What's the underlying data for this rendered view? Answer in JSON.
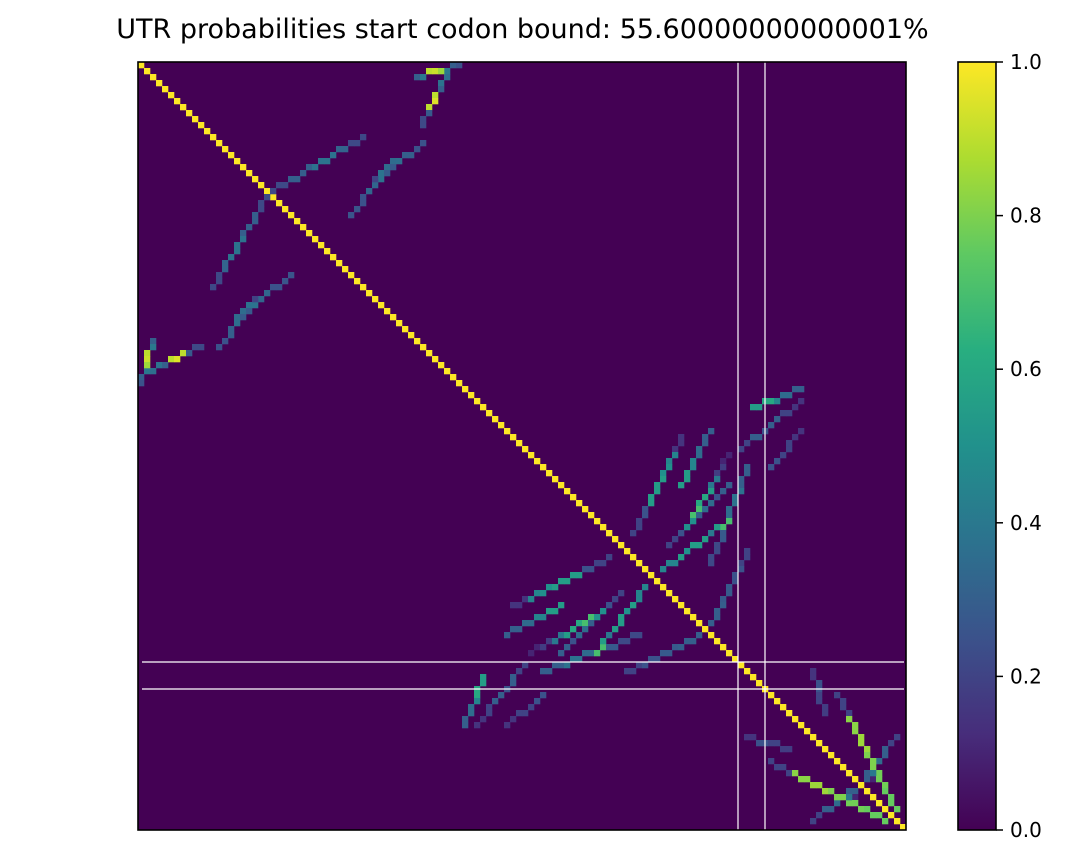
{
  "chart_data": {
    "type": "heatmap",
    "title": "UTR probabilities start codon bound: 55.60000000000001%",
    "xlabel": "",
    "ylabel": "",
    "n": 128,
    "colormap": "viridis",
    "vmin": 0.0,
    "vmax": 1.0,
    "grid": false,
    "axis_ticks": "off",
    "colorbar": {
      "placement": "right",
      "ticks": [
        "0.0",
        "0.2",
        "0.4",
        "0.6",
        "0.8",
        "1.0"
      ]
    },
    "reference_lines": {
      "color": "#ffffff",
      "vertical_at": [
        100,
        104.5
      ],
      "horizontal_at": [
        100,
        104.5
      ]
    },
    "diagonal_value": 1.0,
    "helices": [
      {
        "from": [
          1,
          51
        ],
        "to": [
          10,
          47
        ],
        "values": [
          0.34,
          0.36,
          0.38,
          0.3,
          0.9,
          0.95,
          0.9,
          0.28,
          0.22
        ]
      },
      {
        "from": [
          16,
          42
        ],
        "to": [
          25,
          35
        ],
        "values": [
          0.35,
          0.38,
          0.33,
          0.25,
          0.26
        ]
      },
      {
        "from": [
          22,
          21
        ],
        "to": [
          37,
          12
        ],
        "values": [
          0.22,
          0.3,
          0.3,
          0.38,
          0.38,
          0.32,
          0.22
        ]
      },
      {
        "from": [
          39,
          19
        ],
        "to": [
          47,
          13
        ],
        "values": [
          0.2,
          0.28,
          0.36,
          0.3,
          0.25
        ]
      },
      {
        "from": [
          46,
          2
        ],
        "to": [
          53,
          0
        ],
        "values": [
          0.3,
          0.4,
          0.9,
          0.92,
          0.94,
          0.85,
          0.4,
          0.3,
          0.25
        ]
      },
      {
        "from": [
          61,
          95
        ],
        "to": [
          70,
          90
        ],
        "values": [
          0.3,
          0.35,
          0.45,
          0.55
        ]
      },
      {
        "from": [
          62,
          90
        ],
        "to": [
          78,
          82
        ],
        "values": [
          0.15,
          0.45,
          0.5,
          0.55,
          0.55,
          0.25,
          0.2
        ]
      },
      {
        "from": [
          65,
          98
        ],
        "to": [
          77,
          91
        ],
        "values": [
          0.1,
          0.18,
          0.4,
          0.55,
          0.6,
          0.7,
          0.5
        ]
      },
      {
        "from": [
          67,
          101
        ],
        "to": [
          83,
          95
        ],
        "values": [
          0.3,
          0.38,
          0.35,
          0.28,
          0.22
        ]
      },
      {
        "from": [
          81,
          101
        ],
        "to": [
          93,
          95
        ],
        "values": [
          0.2,
          0.25,
          0.28,
          0.3
        ]
      },
      {
        "from": [
          87,
          84
        ],
        "to": [
          98,
          76
        ],
        "values": [
          0.45,
          0.45,
          0.55,
          0.5,
          0.55,
          0.55,
          0.4,
          0.55,
          0.7
        ]
      },
      {
        "from": [
          88,
          80
        ],
        "to": [
          98,
          70
        ],
        "values": [
          0.2,
          0.25,
          0.2,
          0.3,
          0.35,
          0.25,
          0.3
        ]
      },
      {
        "from": [
          102,
          57
        ],
        "to": [
          110,
          54
        ],
        "values": [
          0.55,
          0.6,
          0.45,
          0.35,
          0.3
        ]
      },
      {
        "from": [
          100,
          64
        ],
        "to": [
          110,
          56
        ],
        "values": [
          0.2,
          0.3,
          0.25,
          0.3,
          0.2,
          0.15
        ]
      },
      {
        "from": [
          105,
          67
        ],
        "to": [
          110,
          61
        ],
        "values": [
          0.25,
          0.2,
          0.2,
          0.15
        ]
      },
      {
        "from": [
          112,
          126
        ],
        "to": [
          121,
          119
        ],
        "values": [
          0.2,
          0.3,
          0.35,
          0.3,
          0.2
        ]
      },
      {
        "from": [
          118,
          123
        ],
        "to": [
          123,
          116
        ],
        "values": [
          0.1,
          0.15,
          0.25,
          0.4,
          0.2
        ]
      },
      {
        "from": [
          105,
          116
        ],
        "to": [
          124,
          126
        ],
        "values": [
          0.2,
          0.82,
          0.85,
          0.8,
          0.78,
          0.76
        ]
      },
      {
        "from": [
          101,
          112
        ],
        "to": [
          108,
          114
        ],
        "values": [
          0.15,
          0.25,
          0.2,
          0.18
        ]
      }
    ]
  }
}
